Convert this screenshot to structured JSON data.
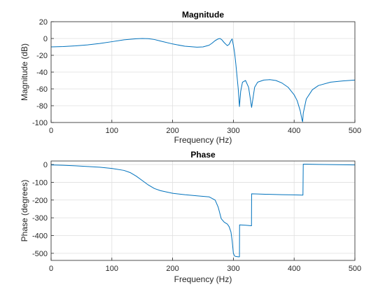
{
  "chart_data": [
    {
      "type": "line",
      "title": "Magnitude",
      "xlabel": "Frequency (Hz)",
      "ylabel": "Magnitude (dB)",
      "xlim": [
        0,
        500
      ],
      "ylim": [
        -100,
        20
      ],
      "xticks": [
        0,
        100,
        200,
        300,
        400,
        500
      ],
      "yticks": [
        20,
        0,
        -20,
        -40,
        -60,
        -80,
        -100
      ],
      "grid": true,
      "line_color": "#0072BD",
      "series": [
        {
          "x": [
            0,
            20,
            40,
            60,
            80,
            100,
            120,
            140,
            150,
            160,
            170,
            180,
            200,
            220,
            240,
            250,
            260,
            265,
            270,
            275,
            278,
            281,
            285,
            290,
            293,
            296,
            298,
            300,
            302,
            304,
            306,
            308,
            310,
            312,
            315,
            320,
            325,
            330,
            335,
            340,
            350,
            360,
            370,
            380,
            390,
            400,
            405,
            410,
            413,
            414,
            415,
            420,
            430,
            440,
            460,
            480,
            500
          ],
          "y": [
            -10,
            -9.6,
            -8.8,
            -7.6,
            -5.9,
            -3.8,
            -1.6,
            -0.3,
            0,
            -0.2,
            -1.2,
            -3,
            -6.5,
            -9.2,
            -10.3,
            -10,
            -8,
            -5.5,
            -2.5,
            -0.5,
            0,
            -1.5,
            -5,
            -8.5,
            -7,
            -2.5,
            -0.5,
            -8,
            -17,
            -30,
            -45,
            -60,
            -81,
            -63,
            -52,
            -50,
            -58,
            -82,
            -58,
            -52,
            -49.5,
            -49,
            -50,
            -53,
            -58,
            -67,
            -74,
            -86,
            -97,
            -99,
            -89,
            -72,
            -61,
            -56,
            -52,
            -50.5,
            -49.5
          ]
        }
      ]
    },
    {
      "type": "line",
      "title": "Phase",
      "xlabel": "Frequency (Hz)",
      "ylabel": "Phase (degrees)",
      "xlim": [
        0,
        500
      ],
      "ylim": [
        -540,
        20
      ],
      "xticks": [
        0,
        100,
        200,
        300,
        400,
        500
      ],
      "yticks": [
        0,
        -100,
        -200,
        -300,
        -400,
        -500
      ],
      "grid": true,
      "line_color": "#0072BD",
      "series": [
        {
          "x": [
            0,
            20,
            40,
            60,
            80,
            100,
            120,
            130,
            140,
            150,
            160,
            170,
            180,
            200,
            220,
            240,
            260,
            270,
            275,
            280,
            285,
            290,
            293,
            296,
            298,
            300,
            302,
            304,
            308,
            310,
            310.2,
            320,
            329.8,
            330,
            340,
            360,
            380,
            400,
            414.5,
            415,
            420,
            440,
            460,
            480,
            500
          ],
          "y": [
            -2,
            -4,
            -7,
            -11,
            -15,
            -22,
            -33,
            -45,
            -65,
            -90,
            -115,
            -135,
            -147,
            -162,
            -170,
            -176,
            -182,
            -200,
            -240,
            -305,
            -325,
            -335,
            -350,
            -380,
            -430,
            -500,
            -515,
            -518,
            -520,
            -520,
            -340,
            -342,
            -345,
            -165,
            -166,
            -168,
            -170,
            -171,
            -172,
            2,
            2,
            1,
            0,
            -1,
            -2
          ]
        }
      ]
    }
  ]
}
